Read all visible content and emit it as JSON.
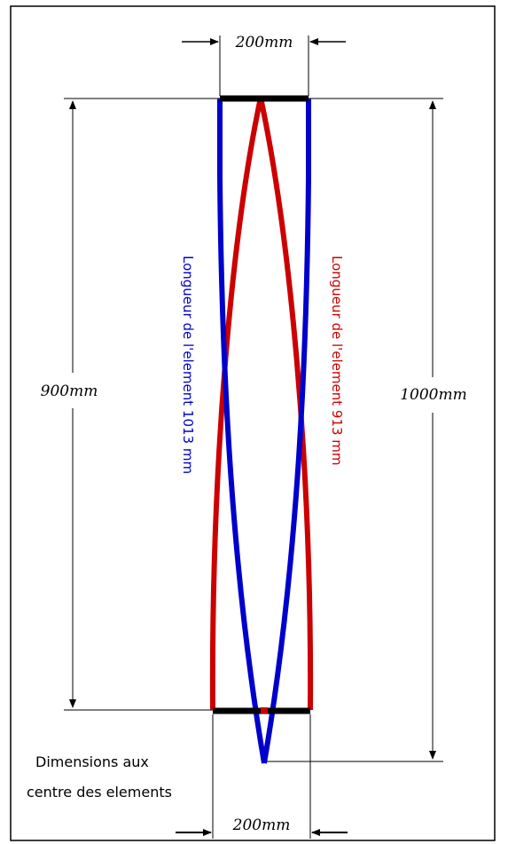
{
  "colors": {
    "blue": "#0000cc",
    "red": "#cc0000",
    "black": "#000000"
  },
  "dimensions": {
    "top_width": "200mm",
    "bottom_width": "200mm",
    "left_height": "900mm",
    "right_height": "1000mm"
  },
  "labels": {
    "blue_element": "Longueur de l'element 1013 mm",
    "red_element": "Longueur de l'element 913 mm"
  },
  "note": {
    "line1": "Dimensions aux",
    "line2": "centre des elements"
  }
}
